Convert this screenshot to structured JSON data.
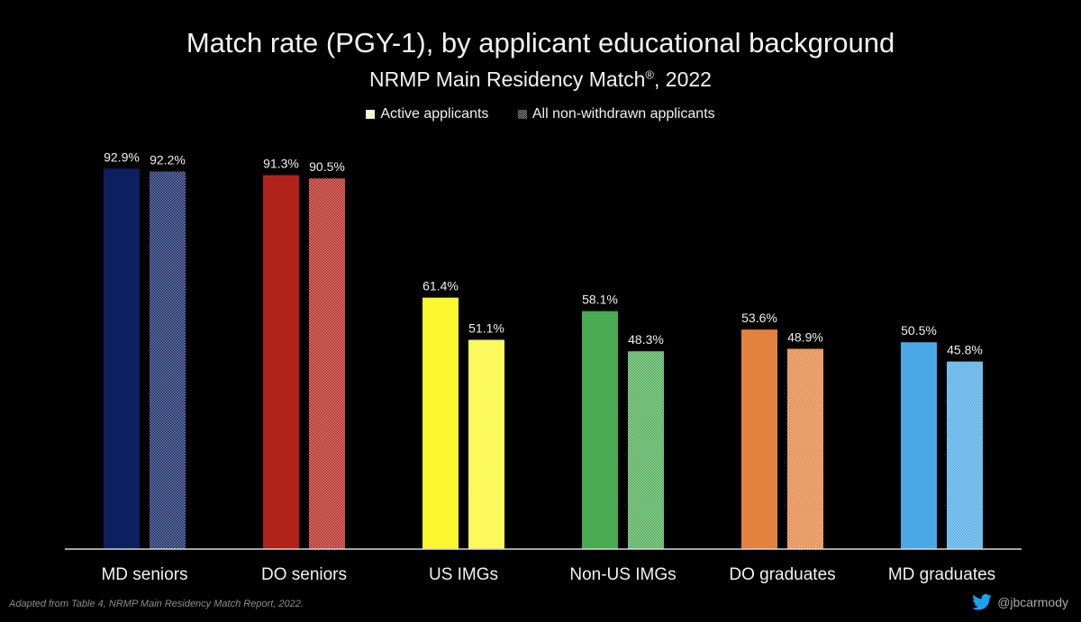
{
  "header": {
    "title": "Match rate (PGY-1), by applicant educational background",
    "subtitle": "NRMP Main Residency Match",
    "subtitle_mark": "®",
    "subtitle_year": ", 2022"
  },
  "legend": {
    "active": "Active applicants",
    "all": "All non-withdrawn applicants"
  },
  "footer": {
    "note": "Adapted from Table 4, NRMP Main Residency Match Report, 2022.",
    "handle": "@jbcarmody"
  },
  "colors": {
    "md_seniors": "#0c1f5e",
    "do_seniors": "#b0221a",
    "us_imgs": "#fbf62d",
    "non_us_imgs": "#4aaa52",
    "do_graduates": "#e3813f",
    "md_graduates": "#4ba8e6",
    "twitter": "#1da1f2"
  },
  "chart_data": {
    "type": "bar",
    "categories": [
      "MD seniors",
      "DO seniors",
      "US IMGs",
      "Non-US IMGs",
      "DO graduates",
      "MD graduates"
    ],
    "series": [
      {
        "name": "Active applicants",
        "values": [
          92.9,
          91.3,
          61.4,
          58.1,
          53.6,
          50.5
        ]
      },
      {
        "name": "All non-withdrawn applicants",
        "values": [
          92.2,
          90.5,
          51.1,
          48.3,
          48.9,
          45.8
        ]
      }
    ],
    "data_labels": [
      [
        "92.9%",
        "91.3%",
        "61.4%",
        "58.1%",
        "53.6%",
        "50.5%"
      ],
      [
        "92.2%",
        "90.5%",
        "51.1%",
        "48.3%",
        "48.9%",
        "45.8%"
      ]
    ],
    "ylim": [
      0,
      100
    ],
    "grid": false,
    "legend_position": "top-center"
  }
}
